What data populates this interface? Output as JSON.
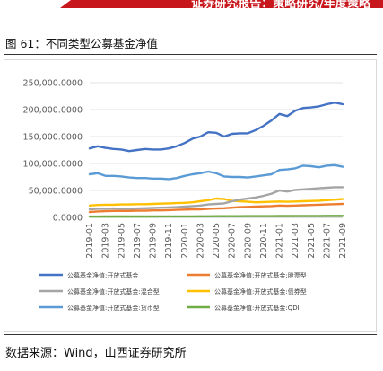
{
  "header": {
    "banner_text": "证券研究报告：策略研究/年度策略"
  },
  "figure": {
    "title": "图 61：不同类型公募基金净值",
    "source": "数据来源：Wind，山西证券研究所"
  },
  "chart_data": {
    "type": "line",
    "categories": [
      "2019-01",
      "2019-02",
      "2019-03",
      "2019-04",
      "2019-05",
      "2019-06",
      "2019-07",
      "2019-08",
      "2019-09",
      "2019-10",
      "2019-11",
      "2019-12",
      "2020-01",
      "2020-02",
      "2020-03",
      "2020-04",
      "2020-05",
      "2020-06",
      "2020-07",
      "2020-08",
      "2020-09",
      "2020-10",
      "2020-11",
      "2020-12",
      "2021-01",
      "2021-02",
      "2021-03",
      "2021-04",
      "2021-05",
      "2021-06",
      "2021-07",
      "2021-08",
      "2021-09"
    ],
    "tick_labels": [
      "2019-01",
      "2019-03",
      "2019-05",
      "2019-07",
      "2019-09",
      "2019-11",
      "2020-01",
      "2020-03",
      "2020-05",
      "2020-07",
      "2020-09",
      "2020-11",
      "2021-01",
      "2021-03",
      "2021-05",
      "2021-07",
      "2021-09"
    ],
    "y_ticks": [
      "0.0000",
      "50,000.0000",
      "100,000.0000",
      "150,000.0000",
      "200,000.0000",
      "250,000.0000"
    ],
    "ylim": [
      0,
      250000
    ],
    "grid": true,
    "legend_position": "bottom",
    "series": [
      {
        "name": "公募基金净值:开放式基金",
        "color": "#4472c4",
        "values": [
          128000,
          132000,
          129000,
          127000,
          126000,
          123000,
          125000,
          127000,
          126000,
          126000,
          128000,
          132000,
          138000,
          146000,
          150000,
          158000,
          157000,
          150000,
          155000,
          156000,
          156000,
          162000,
          170000,
          180000,
          192000,
          188000,
          198000,
          203000,
          204000,
          206000,
          210000,
          213000,
          210000
        ]
      },
      {
        "name": "公募基金净值:开放式基金:股票型",
        "color": "#ed7d31",
        "values": [
          10000,
          11000,
          11500,
          12000,
          12000,
          12000,
          12500,
          12500,
          13000,
          13000,
          13500,
          14000,
          14500,
          15000,
          15000,
          16000,
          16500,
          17000,
          18000,
          19000,
          19500,
          20000,
          20500,
          21000,
          22000,
          21500,
          22000,
          22500,
          23000,
          23500,
          24000,
          24500,
          25000
        ]
      },
      {
        "name": "公募基金净值:开放式基金:混合型",
        "color": "#a5a5a5",
        "values": [
          15000,
          16000,
          16000,
          16500,
          16000,
          16000,
          16500,
          17000,
          17500,
          18000,
          18500,
          19000,
          20000,
          21000,
          22000,
          24000,
          25000,
          26000,
          30000,
          33000,
          35000,
          37000,
          40000,
          44000,
          50000,
          48000,
          51000,
          52000,
          53000,
          54000,
          55000,
          56000,
          56000
        ]
      },
      {
        "name": "公募基金净值:开放式基金:债券型",
        "color": "#ffc000",
        "values": [
          22000,
          23000,
          23500,
          23500,
          24000,
          24000,
          24500,
          24500,
          25000,
          25500,
          26000,
          26500,
          27000,
          28000,
          30000,
          32000,
          35000,
          34000,
          31000,
          30000,
          29000,
          28000,
          28500,
          29000,
          29500,
          29000,
          29500,
          30000,
          30500,
          31000,
          32000,
          33000,
          34000
        ]
      },
      {
        "name": "公募基金净值:开放式基金:货币型",
        "color": "#5b9bd5",
        "values": [
          80000,
          82000,
          77000,
          77000,
          76000,
          74000,
          73000,
          73000,
          72000,
          72000,
          71000,
          73000,
          77000,
          80000,
          82000,
          85000,
          82000,
          76000,
          75000,
          75000,
          74000,
          76000,
          78000,
          80000,
          88000,
          89000,
          91000,
          96000,
          95000,
          93000,
          96000,
          97000,
          94000
        ]
      },
      {
        "name": "公募基金净值:开放式基金:QDII",
        "color": "#70ad47",
        "values": [
          1500,
          1500,
          1600,
          1600,
          1600,
          1600,
          1700,
          1700,
          1700,
          1800,
          1800,
          1800,
          1900,
          1900,
          2000,
          2000,
          2100,
          2100,
          2200,
          2200,
          2300,
          2300,
          2400,
          2400,
          2500,
          2500,
          2600,
          2600,
          2700,
          2700,
          2800,
          2800,
          2900
        ]
      }
    ]
  }
}
